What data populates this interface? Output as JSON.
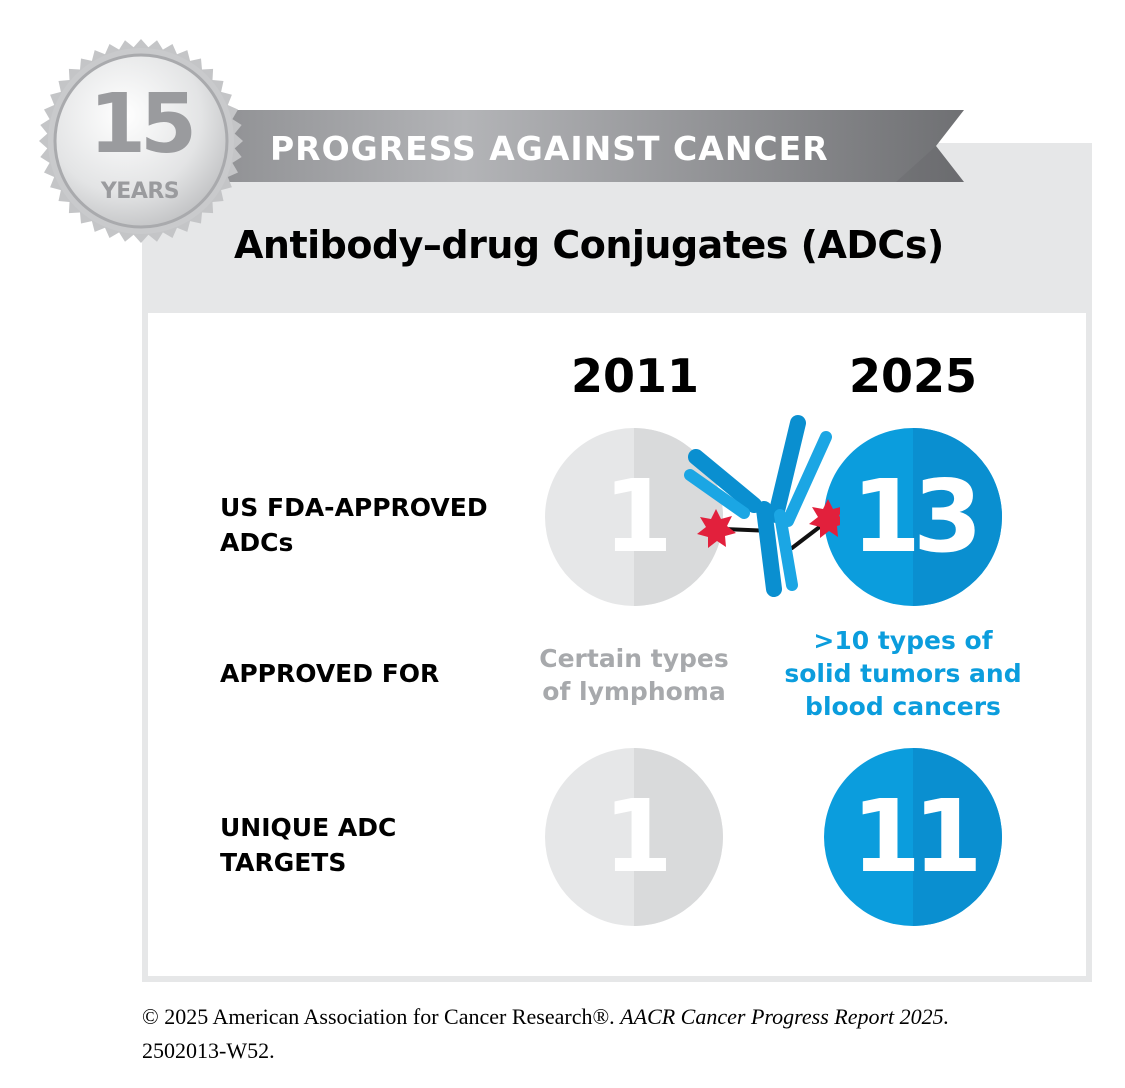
{
  "seal": {
    "number": "15",
    "label": "YEARS"
  },
  "ribbon": {
    "text": "PROGRESS AGAINST CANCER"
  },
  "title": "Antibody–drug Conjugates (ADCs)",
  "columns": {
    "left_year": "2011",
    "right_year": "2025"
  },
  "rows": {
    "fda": {
      "label_line1": "US FDA-APPROVED",
      "label_line2": "ADCs",
      "left_value": "1",
      "right_value": "13"
    },
    "approved": {
      "label": "APPROVED FOR",
      "left_line1": "Certain types",
      "left_line2": "of lymphoma",
      "right_line1": ">10 types of",
      "right_line2": "solid tumors and",
      "right_line3": "blood cancers"
    },
    "targets": {
      "label_line1": "UNIQUE ADC",
      "label_line2": "TARGETS",
      "left_value": "1",
      "right_value": "11"
    }
  },
  "footer": {
    "line1_prefix": "© 2025 American Association for Cancer Research®. ",
    "line1_italic": "AACR Cancer Progress Report 2025.",
    "line2": "2502013-W52."
  },
  "colors": {
    "blue": "#0b9ddd",
    "gray_circle": "#d9dadb",
    "gray_text": "#a7a9ac",
    "red_drug": "#e2203c",
    "card_bg": "#e6e7e8"
  }
}
